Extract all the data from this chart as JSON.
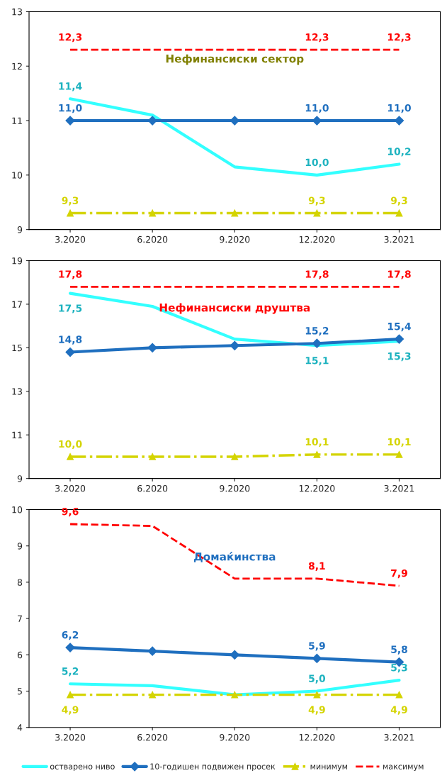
{
  "chart_data": [
    {
      "type": "line",
      "title": "Нефинансиски сектор",
      "categories": [
        "3.2020",
        "6.2020",
        "9.2020",
        "12.2020",
        "3.2021"
      ],
      "ylim": [
        9,
        13
      ],
      "yticks": [
        9,
        10,
        11,
        12,
        13
      ],
      "grid": false,
      "series": [
        {
          "color": "#33ffff",
          "marker": "none",
          "line_style": "solid",
          "values": [
            11.4,
            11.1,
            10.15,
            10.0,
            10.2
          ],
          "value_labels": [
            "11,4",
            null,
            null,
            "10,0",
            "10,2"
          ]
        },
        {
          "color": "#1f6fbf",
          "marker": "diamond",
          "line_style": "solid",
          "values": [
            11.0,
            11.0,
            11.0,
            11.0,
            11.0
          ],
          "value_labels": [
            "11,0",
            null,
            null,
            "11,0",
            "11,0"
          ]
        },
        {
          "color": "#d4d400",
          "marker": "triangle",
          "line_style": "dashdot",
          "values": [
            9.3,
            9.3,
            9.3,
            9.3,
            9.3
          ],
          "value_labels": [
            "9,3",
            null,
            null,
            "9,3",
            "9,3"
          ]
        },
        {
          "color": "#ff0000",
          "marker": "none",
          "line_style": "dashed",
          "values": [
            12.3,
            12.3,
            12.3,
            12.3,
            12.3
          ],
          "value_labels": [
            "12,3",
            null,
            null,
            "12,3",
            "12,3"
          ]
        }
      ]
    },
    {
      "type": "line",
      "title": "Нефинансиски друштва",
      "categories": [
        "3.2020",
        "6.2020",
        "9.2020",
        "12.2020",
        "3.2021"
      ],
      "ylim": [
        9,
        19
      ],
      "yticks": [
        9,
        11,
        13,
        15,
        17,
        19
      ],
      "grid": false,
      "series": [
        {
          "color": "#33ffff",
          "marker": "none",
          "line_style": "solid",
          "values": [
            17.5,
            16.9,
            15.4,
            15.1,
            15.3
          ],
          "value_labels": [
            "17,5",
            null,
            null,
            "15,1",
            "15,3"
          ]
        },
        {
          "color": "#1f6fbf",
          "marker": "diamond",
          "line_style": "solid",
          "values": [
            14.8,
            15.0,
            15.1,
            15.2,
            15.4
          ],
          "value_labels": [
            "14,8",
            null,
            null,
            "15,2",
            "15,4"
          ]
        },
        {
          "color": "#d4d400",
          "marker": "triangle",
          "line_style": "dashdot",
          "values": [
            10.0,
            10.0,
            10.0,
            10.1,
            10.1
          ],
          "value_labels": [
            "10,0",
            null,
            null,
            "10,1",
            "10,1"
          ]
        },
        {
          "color": "#ff0000",
          "marker": "none",
          "line_style": "dashed",
          "values": [
            17.8,
            17.8,
            17.8,
            17.8,
            17.8
          ],
          "value_labels": [
            "17,8",
            null,
            null,
            "17,8",
            "17,8"
          ]
        }
      ]
    },
    {
      "type": "line",
      "title": "Домаќинства",
      "categories": [
        "3.2020",
        "6.2020",
        "9.2020",
        "12.2020",
        "3.2021"
      ],
      "ylim": [
        4,
        10
      ],
      "yticks": [
        4,
        5,
        6,
        7,
        8,
        9,
        10
      ],
      "grid": false,
      "legend": "bottom",
      "series": [
        {
          "name": "остварено ниво",
          "color": "#33ffff",
          "marker": "none",
          "line_style": "solid",
          "values": [
            5.2,
            5.15,
            4.9,
            5.0,
            5.3
          ],
          "value_labels": [
            "5,2",
            null,
            null,
            "5,0",
            "5,3"
          ]
        },
        {
          "name": "10-годишен подвижен просек",
          "color": "#1f6fbf",
          "marker": "diamond",
          "line_style": "solid",
          "values": [
            6.2,
            6.1,
            6.0,
            5.9,
            5.8
          ],
          "value_labels": [
            "6,2",
            null,
            null,
            "5,9",
            "5,8"
          ]
        },
        {
          "name": "минимум",
          "color": "#d4d400",
          "marker": "triangle",
          "line_style": "dashdot",
          "values": [
            4.9,
            4.9,
            4.9,
            4.9,
            4.9
          ],
          "value_labels": [
            "4,9",
            null,
            null,
            "4,9",
            "4,9"
          ]
        },
        {
          "name": "максимум",
          "color": "#ff0000",
          "marker": "none",
          "line_style": "dashed",
          "values": [
            9.6,
            9.55,
            8.1,
            8.1,
            7.9
          ],
          "value_labels": [
            "9,6",
            null,
            null,
            "8,1",
            "7,9"
          ]
        }
      ]
    }
  ]
}
